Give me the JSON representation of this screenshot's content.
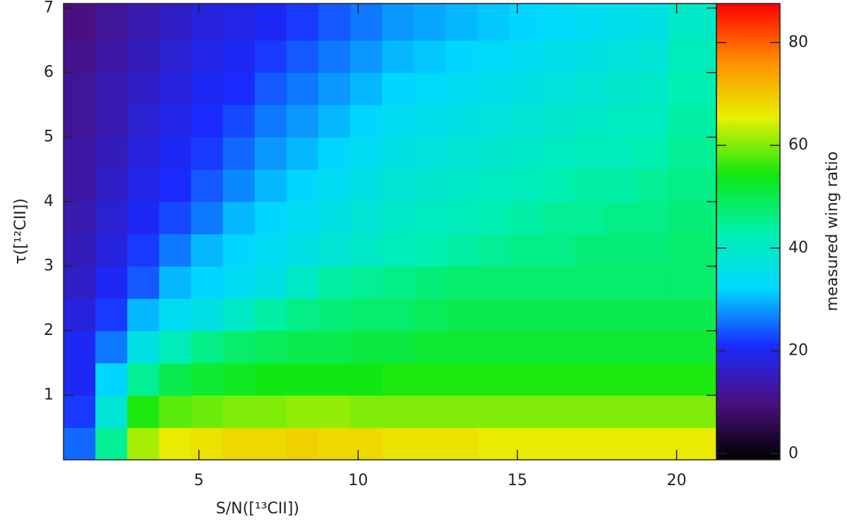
{
  "chart_data": {
    "type": "heatmap",
    "xlabel": "S/N([¹³CII])",
    "ylabel": "τ([¹²CII])",
    "colorbar_label": "measured wing ratio",
    "xlim": [
      0.75,
      21.25
    ],
    "ylim": [
      0,
      7.07
    ],
    "xticks": [
      5,
      10,
      15,
      20
    ],
    "yticks": [
      1,
      2,
      3,
      4,
      5,
      6,
      7
    ],
    "clim": [
      -1.2,
      87.6
    ],
    "cticks": [
      0,
      20,
      40,
      60,
      80
    ],
    "colormap": [
      "#000000",
      "#4a1080",
      "#1a2aff",
      "#00d8ff",
      "#00f0b0",
      "#10e810",
      "#e8f000",
      "#ff8c00",
      "#ff0000"
    ],
    "x_edges": [
      0.75,
      1.75,
      2.75,
      3.75,
      4.75,
      5.75,
      6.75,
      7.75,
      8.75,
      9.75,
      10.75,
      11.75,
      12.75,
      13.75,
      14.75,
      15.75,
      16.75,
      17.75,
      18.75,
      19.75,
      21.25
    ],
    "y_edges": [
      0,
      0.5,
      1,
      1.5,
      2,
      2.5,
      3,
      3.5,
      4,
      4.5,
      5,
      5.5,
      6,
      6.5,
      7.07
    ],
    "z": [
      [
        25,
        45,
        62,
        66,
        67,
        68,
        68,
        69,
        68,
        68,
        67,
        67,
        67,
        66,
        66,
        66,
        66,
        66,
        66,
        66
      ],
      [
        22,
        38,
        55,
        58,
        59,
        60,
        60,
        61,
        61,
        60,
        60,
        60,
        60,
        60,
        60,
        60,
        60,
        60,
        60,
        60
      ],
      [
        20,
        32,
        45,
        50,
        52,
        53,
        54,
        54,
        54,
        54,
        55,
        55,
        55,
        55,
        55,
        55,
        55,
        55,
        55,
        55
      ],
      [
        20,
        26,
        36,
        42,
        46,
        48,
        49,
        50,
        50,
        51,
        51,
        52,
        52,
        52,
        52,
        52,
        52,
        52,
        52,
        52
      ],
      [
        18,
        22,
        30,
        34,
        36,
        40,
        44,
        46,
        47,
        48,
        48,
        49,
        50,
        50,
        50,
        50,
        50,
        50,
        50,
        50
      ],
      [
        16,
        20,
        24,
        30,
        32,
        34,
        36,
        40,
        44,
        45,
        46,
        47,
        48,
        48,
        48,
        48,
        48,
        48,
        48,
        48
      ],
      [
        15,
        18,
        22,
        26,
        30,
        32,
        34,
        36,
        38,
        40,
        42,
        43,
        44,
        45,
        46,
        46,
        47,
        47,
        47,
        48
      ],
      [
        14,
        17,
        20,
        23,
        26,
        30,
        32,
        34,
        36,
        38,
        40,
        41,
        42,
        43,
        44,
        45,
        45,
        46,
        46,
        47
      ],
      [
        13,
        16,
        19,
        21,
        24,
        27,
        30,
        32,
        34,
        36,
        38,
        39,
        40,
        41,
        42,
        43,
        44,
        44,
        45,
        46
      ],
      [
        13,
        15,
        18,
        20,
        22,
        25,
        28,
        30,
        32,
        34,
        36,
        37,
        38,
        39,
        40,
        41,
        42,
        42,
        43,
        45
      ],
      [
        12,
        14,
        17,
        19,
        21,
        23,
        26,
        28,
        30,
        32,
        34,
        35,
        36,
        37,
        38,
        39,
        40,
        41,
        41,
        44
      ],
      [
        12,
        14,
        16,
        18,
        20,
        21,
        24,
        26,
        28,
        30,
        32,
        33,
        34,
        35,
        36,
        37,
        38,
        39,
        40,
        43
      ],
      [
        11,
        13,
        15,
        17,
        19,
        20,
        22,
        24,
        26,
        28,
        30,
        31,
        32,
        33,
        34,
        35,
        36,
        37,
        38,
        42
      ],
      [
        10,
        12,
        14,
        16,
        18,
        19,
        20,
        22,
        24,
        26,
        28,
        29,
        30,
        31,
        32,
        33,
        34,
        35,
        36,
        40
      ]
    ]
  }
}
